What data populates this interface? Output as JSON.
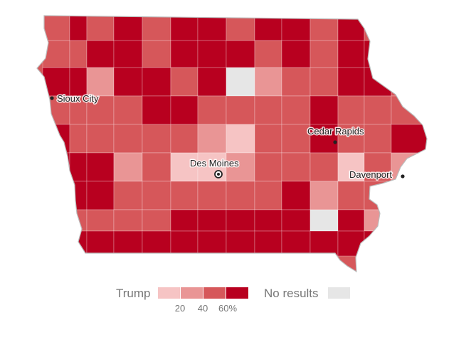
{
  "map": {
    "cities": [
      {
        "name": "Sioux City",
        "type": "dot"
      },
      {
        "name": "Cedar Rapids",
        "type": "dot"
      },
      {
        "name": "Des Moines",
        "type": "capital"
      },
      {
        "name": "Davenport",
        "type": "dot"
      }
    ]
  },
  "legend": {
    "party_label": "Trump",
    "scale_colors": [
      "#f6c4c4",
      "#e99595",
      "#d6575a",
      "#b8001f"
    ],
    "tick_labels": [
      "20",
      "40",
      "60%"
    ],
    "no_results_label": "No results",
    "no_results_color": "#e6e6e6"
  }
}
